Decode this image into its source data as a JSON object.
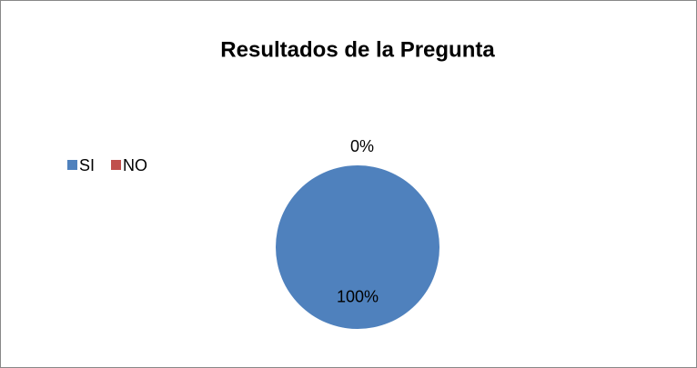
{
  "chart_data": {
    "type": "pie",
    "title": "Resultados de la Pregunta",
    "categories": [
      "SI",
      "NO"
    ],
    "values": [
      100,
      0
    ],
    "value_labels": [
      "100%",
      "0%"
    ],
    "colors": [
      "#4f81bd",
      "#c0504d"
    ],
    "legend": "left"
  }
}
